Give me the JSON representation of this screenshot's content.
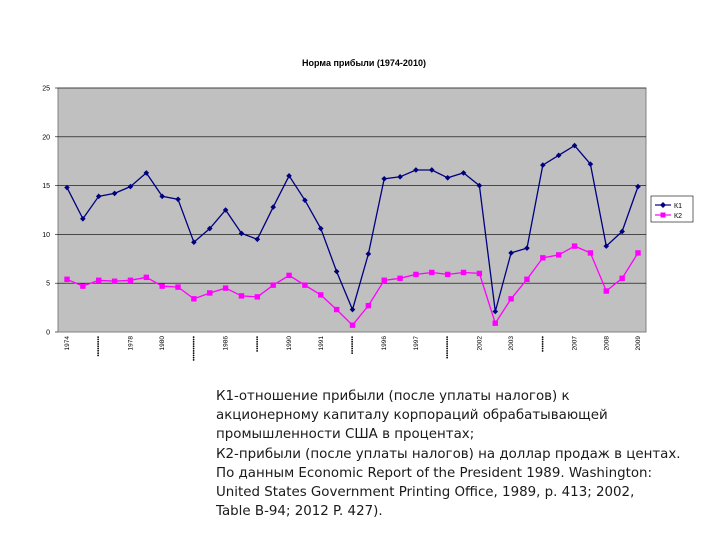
{
  "chart_data": {
    "type": "line",
    "title": "Норма прибыли (1974-2010)",
    "xlabel": "",
    "ylabel": "",
    "ylim": [
      0,
      25
    ],
    "yticks": [
      0,
      5,
      10,
      15,
      20,
      25
    ],
    "grid": true,
    "legend_position": "right",
    "x_tick_labels": [
      "1974",
      "•••••••••",
      "1978",
      "1980",
      "•••••••••••",
      "1986",
      "•••••••",
      "1990",
      "1991",
      "••••••••",
      "1996",
      "1997",
      "••••••••••",
      "2002",
      "2003",
      "•••••••",
      "2007",
      "2008",
      "2009"
    ],
    "series": [
      {
        "name": "К1",
        "color": "#000080",
        "marker": "diamond",
        "values": [
          14.8,
          11.6,
          13.9,
          14.2,
          14.9,
          16.3,
          13.9,
          13.6,
          9.2,
          10.6,
          12.5,
          10.1,
          9.5,
          12.8,
          16.0,
          13.5,
          10.6,
          6.2,
          2.3,
          8.0,
          15.7,
          15.9,
          16.6,
          16.6,
          15.8,
          16.3,
          15.0,
          2.1,
          8.1,
          8.6,
          17.1,
          18.1,
          19.1,
          17.2,
          8.8,
          10.3,
          14.9
        ]
      },
      {
        "name": "К2",
        "color": "#ff00ff",
        "marker": "square",
        "values": [
          5.4,
          4.7,
          5.3,
          5.2,
          5.3,
          5.6,
          4.7,
          4.6,
          3.4,
          4.0,
          4.5,
          3.7,
          3.6,
          4.8,
          5.8,
          4.8,
          3.8,
          2.3,
          0.7,
          2.7,
          5.3,
          5.5,
          5.9,
          6.1,
          5.9,
          6.1,
          6.0,
          0.9,
          3.4,
          5.4,
          7.6,
          7.9,
          8.8,
          8.1,
          4.2,
          5.5,
          8.1
        ]
      }
    ]
  },
  "caption": {
    "lines": [
      "К1-отношение прибыли (после уплаты налогов) к",
      "акционерному капиталу корпораций обрабатывающей",
      "промышленности США в процентах;",
      "К2-прибыли (после уплаты налогов) на доллар продаж в центах.",
      "По данным Economic Report of the President 1989. Washington:",
      "United States  Government Printing Office, 1989, p. 413; 2002,",
      "Table B-94; 2012 P. 427)."
    ]
  }
}
